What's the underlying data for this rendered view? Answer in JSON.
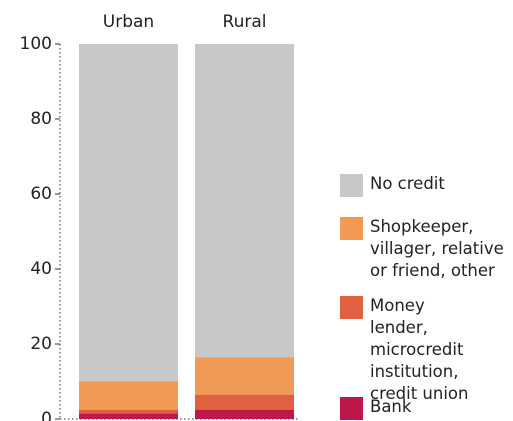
{
  "chart_data": {
    "type": "stacked_bar",
    "categories": [
      "Urban",
      "Rural"
    ],
    "series": [
      {
        "name": "Bank",
        "color": "#c0174a",
        "values": [
          1.5,
          2.5
        ]
      },
      {
        "name": "Money lender, microcredit institution, credit union",
        "color": "#e0603f",
        "values": [
          1,
          4
        ]
      },
      {
        "name": "Shopkeeper, villager, relative or friend, other",
        "color": "#f09a55",
        "values": [
          7.5,
          10
        ]
      },
      {
        "name": "No credit",
        "color": "#c8c8c8",
        "values": [
          90,
          83.5
        ]
      }
    ],
    "ylim": [
      0,
      100
    ],
    "yticks": [
      0,
      20,
      40,
      60,
      80,
      100
    ],
    "grid": false
  }
}
